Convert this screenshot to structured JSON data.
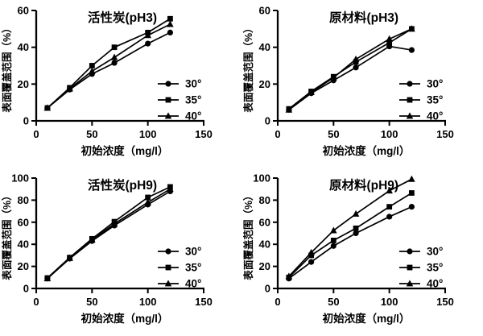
{
  "page": {
    "background": "#ffffff",
    "ink_color": "#000000"
  },
  "chart_data": [
    {
      "id": "activated-carbon-ph3",
      "type": "line",
      "title": "活性炭(pH3)",
      "xlabel": "初始浓度（mg/l）",
      "ylabel": "表面覆盖范围（%）",
      "xlim": [
        0,
        150
      ],
      "ylim": [
        0,
        60
      ],
      "xticks": [
        0,
        50,
        100,
        150
      ],
      "yticks": [
        0,
        20,
        40,
        60
      ],
      "x": [
        10,
        30,
        50,
        70,
        100,
        120
      ],
      "series": [
        {
          "name": "30°",
          "marker": "circle",
          "values": [
            7,
            17,
            25.5,
            31.5,
            42,
            48
          ]
        },
        {
          "name": "35°",
          "marker": "square",
          "values": [
            7,
            18,
            30,
            40,
            48,
            55.5
          ]
        },
        {
          "name": "40°",
          "marker": "triangle",
          "values": [
            7,
            17.5,
            27,
            34.5,
            46.5,
            52.5
          ]
        }
      ],
      "legend_position": "right-middle",
      "grid": false,
      "color": "#000000"
    },
    {
      "id": "raw-material-ph3",
      "type": "line",
      "title": "原材料(pH3)",
      "xlabel": "初始浓度（mg/l）",
      "ylabel": "表面覆盖范围（%）",
      "xlim": [
        0,
        150
      ],
      "ylim": [
        0,
        60
      ],
      "xticks": [
        0,
        50,
        100,
        150
      ],
      "yticks": [
        0,
        20,
        40,
        60
      ],
      "x": [
        10,
        30,
        50,
        70,
        100,
        120
      ],
      "series": [
        {
          "name": "30°",
          "marker": "circle",
          "values": [
            6,
            15,
            22,
            29,
            40.5,
            38.5
          ]
        },
        {
          "name": "35°",
          "marker": "square",
          "values": [
            6.5,
            16,
            24,
            32,
            42.5,
            50
          ]
        },
        {
          "name": "40°",
          "marker": "triangle",
          "values": [
            6,
            15.5,
            23.5,
            33.5,
            44.5,
            50
          ]
        }
      ],
      "legend_position": "right-middle",
      "grid": false,
      "color": "#000000"
    },
    {
      "id": "activated-carbon-ph9",
      "type": "line",
      "title": "活性炭(pH9)",
      "xlabel": "初始浓度（mg/l）",
      "ylabel": "表面覆盖范围（%）",
      "xlim": [
        0,
        150
      ],
      "ylim": [
        0,
        100
      ],
      "xticks": [
        0,
        50,
        100,
        150
      ],
      "yticks": [
        0,
        20,
        40,
        60,
        80,
        100
      ],
      "x": [
        10,
        30,
        50,
        70,
        100,
        120
      ],
      "series": [
        {
          "name": "30°",
          "marker": "circle",
          "values": [
            9,
            27,
            43,
            57,
            76,
            88
          ]
        },
        {
          "name": "35°",
          "marker": "square",
          "values": [
            9.5,
            28,
            45,
            60.5,
            82.5,
            92
          ]
        },
        {
          "name": "40°",
          "marker": "triangle",
          "values": [
            9,
            27.5,
            44,
            58.5,
            78,
            90
          ]
        }
      ],
      "legend_position": "right-middle",
      "grid": false,
      "color": "#000000"
    },
    {
      "id": "raw-material-ph9",
      "type": "line",
      "title": "原材料(pH9)",
      "xlabel": "初始浓度（mg/l）",
      "ylabel": "表面覆盖范围（%）",
      "xlim": [
        0,
        150
      ],
      "ylim": [
        0,
        100
      ],
      "xticks": [
        0,
        50,
        100,
        150
      ],
      "yticks": [
        0,
        20,
        40,
        60,
        80,
        100
      ],
      "x": [
        10,
        30,
        50,
        70,
        100,
        120
      ],
      "series": [
        {
          "name": "30°",
          "marker": "circle",
          "values": [
            9,
            24,
            38.5,
            50,
            65,
            74
          ]
        },
        {
          "name": "35°",
          "marker": "square",
          "values": [
            10,
            30,
            43.5,
            54.5,
            74,
            86.5
          ]
        },
        {
          "name": "40°",
          "marker": "triangle",
          "values": [
            11,
            32.5,
            52.5,
            67.5,
            88.5,
            99
          ]
        }
      ],
      "legend_position": "right-middle",
      "grid": false,
      "color": "#000000"
    }
  ]
}
